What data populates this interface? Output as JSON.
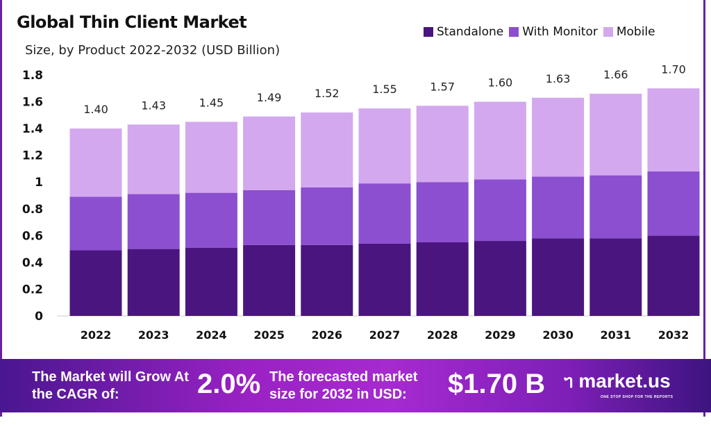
{
  "chart_data": {
    "type": "bar",
    "stacked": true,
    "title": "Global Thin Client Market",
    "subtitle": "Size, by Product 2022-2032 (USD Billion)",
    "categories": [
      "2022",
      "2023",
      "2024",
      "2025",
      "2026",
      "2027",
      "2028",
      "2029",
      "2030",
      "2031",
      "2032"
    ],
    "series": [
      {
        "name": "Standalone",
        "color": "#4b1580",
        "values": [
          0.49,
          0.5,
          0.51,
          0.53,
          0.53,
          0.54,
          0.55,
          0.56,
          0.58,
          0.58,
          0.6
        ]
      },
      {
        "name": "With Monitor",
        "color": "#8b4fcf",
        "values": [
          0.4,
          0.41,
          0.41,
          0.41,
          0.43,
          0.45,
          0.45,
          0.46,
          0.46,
          0.47,
          0.48
        ]
      },
      {
        "name": "Mobile",
        "color": "#d3a8ee",
        "values": [
          0.51,
          0.52,
          0.53,
          0.55,
          0.56,
          0.56,
          0.57,
          0.58,
          0.59,
          0.61,
          0.62
        ]
      }
    ],
    "totals": [
      "1.40",
      "1.43",
      "1.45",
      "1.49",
      "1.52",
      "1.55",
      "1.57",
      "1.60",
      "1.63",
      "1.66",
      "1.70"
    ],
    "yticks": [
      "0",
      "0.2",
      "0.4",
      "0.6",
      "0.8",
      "1",
      "1.2",
      "1.4",
      "1.6",
      "1.8"
    ],
    "ylim": [
      0,
      1.8
    ],
    "grid": false,
    "legend": "top-right"
  },
  "footer": {
    "cagr_label": "The Market will Grow At the CAGR of:",
    "cagr_value": "2.0%",
    "forecast_label": "The forecasted market size for 2032 in USD:",
    "forecast_value": "$1.70 B",
    "logo": "market.us",
    "tagline": "ONE STOP SHOP FOR THE REPORTS"
  }
}
